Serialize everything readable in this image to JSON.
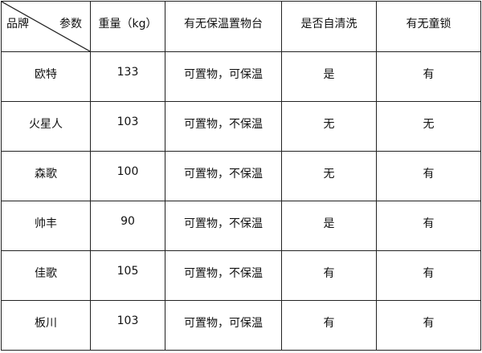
{
  "header": {
    "brand_label": "品牌",
    "param_label": "参数",
    "columns": [
      "重量（kg）",
      "有无保温置物台",
      "是否自清洗",
      "有无童锁"
    ]
  },
  "rows": [
    [
      "欧特",
      "133",
      "可置物，可保温",
      "是",
      "有"
    ],
    [
      "火星人",
      "103",
      "可置物，不保温",
      "无",
      "无"
    ],
    [
      "森歌",
      "100",
      "可置物，不保温",
      "无",
      "有"
    ],
    [
      "帅丰",
      "90",
      "可置物，不保温",
      "是",
      "有"
    ],
    [
      "佳歌",
      "105",
      "可置物，不保温",
      "有",
      "有"
    ],
    [
      "板川",
      "103",
      "可置物，可保温",
      "有",
      "有"
    ]
  ]
}
